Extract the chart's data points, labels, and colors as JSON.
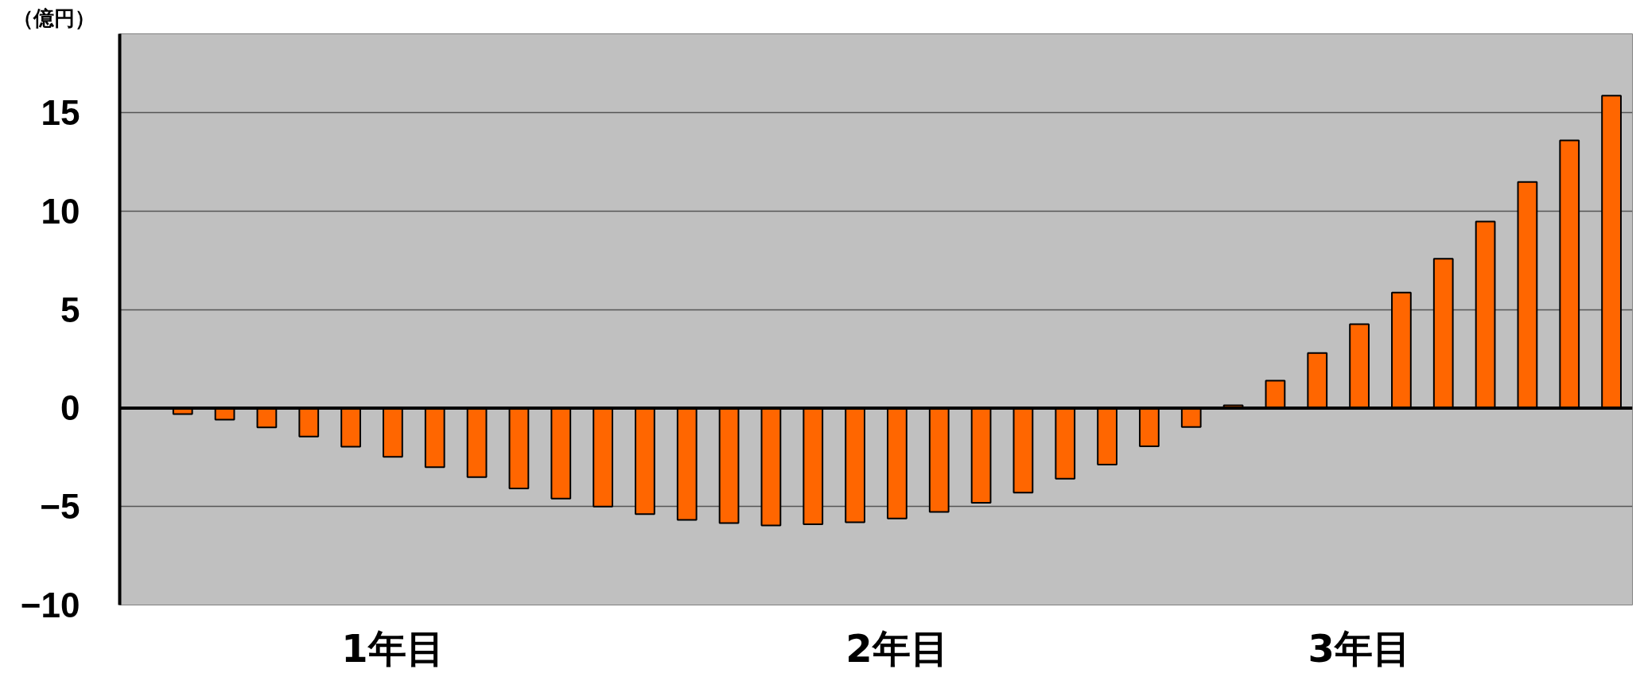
{
  "chart_data": {
    "type": "bar",
    "ylabel": "（億円）",
    "color": "#ff6600",
    "categories": [
      null,
      null,
      null,
      null,
      null,
      null,
      "1年目",
      null,
      null,
      null,
      null,
      null,
      null,
      null,
      null,
      null,
      null,
      null,
      "2年目",
      null,
      null,
      null,
      null,
      null,
      null,
      null,
      null,
      null,
      null,
      "3年目",
      null,
      null,
      null,
      null,
      null,
      null
    ],
    "values": [
      null,
      -0.31,
      -0.59,
      -0.98,
      -1.45,
      -1.96,
      -2.48,
      -3.0,
      -3.51,
      -4.08,
      -4.6,
      -5.0,
      -5.39,
      -5.68,
      -5.84,
      -5.96,
      -5.9,
      -5.8,
      -5.61,
      -5.27,
      -4.81,
      -4.29,
      -3.59,
      -2.87,
      -1.94,
      -0.96,
      0.14,
      1.39,
      2.79,
      4.26,
      5.86,
      7.58,
      9.47,
      11.48,
      13.59,
      15.86
    ],
    "ylim": [
      -10,
      19
    ],
    "yticks": [
      {
        "value": -10,
        "label": "−10"
      },
      {
        "value": -5,
        "label": "−5"
      },
      0,
      5,
      10,
      15
    ],
    "grid": "y"
  }
}
